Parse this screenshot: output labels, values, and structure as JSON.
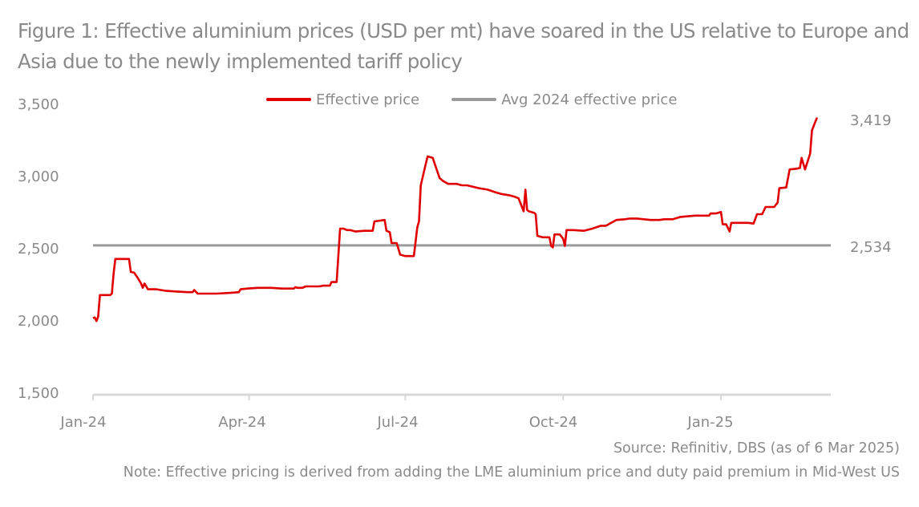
{
  "chart_data": {
    "type": "line",
    "title": "Figure 1:  Effective aluminium prices (USD per mt) have soared in the US relative to Europe and Asia due to the newly implemented tariff policy",
    "xlabel": "",
    "ylabel": "",
    "ylim": [
      1500,
      3500
    ],
    "yticks": [
      "3,500",
      "3,000",
      "2,500",
      "2,000",
      "1,500"
    ],
    "ytick_values": [
      3500,
      3000,
      2500,
      2000,
      1500
    ],
    "xticks": [
      "Jan-24",
      "Apr-24",
      "Jul-24",
      "Oct-24",
      "Jan-25"
    ],
    "xtick_days": [
      0,
      91,
      182,
      274,
      366
    ],
    "x_range_days": [
      0,
      430
    ],
    "x_unit": "days since 1 Jan 2024",
    "grid": false,
    "legend_position": "top",
    "legend": [
      "Effective price",
      "Avg 2024 effective price"
    ],
    "series": [
      {
        "name": "Effective price",
        "color": "#e00000",
        "points": [
          [
            0,
            2030
          ],
          [
            1,
            2035
          ],
          [
            2,
            2010
          ],
          [
            3,
            2040
          ],
          [
            4,
            2190
          ],
          [
            7,
            2190
          ],
          [
            10,
            2190
          ],
          [
            11,
            2200
          ],
          [
            12,
            2340
          ],
          [
            13,
            2440
          ],
          [
            16,
            2440
          ],
          [
            21,
            2440
          ],
          [
            22,
            2350
          ],
          [
            24,
            2345
          ],
          [
            26,
            2310
          ],
          [
            28,
            2270
          ],
          [
            29,
            2240
          ],
          [
            30,
            2270
          ],
          [
            32,
            2230
          ],
          [
            37,
            2230
          ],
          [
            42,
            2220
          ],
          [
            48,
            2215
          ],
          [
            55,
            2210
          ],
          [
            58,
            2210
          ],
          [
            59,
            2225
          ],
          [
            61,
            2200
          ],
          [
            66,
            2200
          ],
          [
            72,
            2200
          ],
          [
            80,
            2205
          ],
          [
            85,
            2210
          ],
          [
            86,
            2230
          ],
          [
            90,
            2235
          ],
          [
            96,
            2240
          ],
          [
            104,
            2240
          ],
          [
            110,
            2235
          ],
          [
            117,
            2235
          ],
          [
            118,
            2245
          ],
          [
            119,
            2240
          ],
          [
            122,
            2240
          ],
          [
            124,
            2250
          ],
          [
            132,
            2250
          ],
          [
            134,
            2255
          ],
          [
            138,
            2255
          ],
          [
            139,
            2280
          ],
          [
            142,
            2280
          ],
          [
            144,
            2650
          ],
          [
            146,
            2650
          ],
          [
            148,
            2640
          ],
          [
            150,
            2640
          ],
          [
            153,
            2630
          ],
          [
            158,
            2635
          ],
          [
            163,
            2635
          ],
          [
            164,
            2700
          ],
          [
            170,
            2710
          ],
          [
            171,
            2635
          ],
          [
            173,
            2625
          ],
          [
            174,
            2550
          ],
          [
            177,
            2550
          ],
          [
            179,
            2470
          ],
          [
            182,
            2460
          ],
          [
            187,
            2460
          ],
          [
            189,
            2660
          ],
          [
            190,
            2700
          ],
          [
            191,
            2950
          ],
          [
            193,
            3050
          ],
          [
            195,
            3150
          ],
          [
            198,
            3140
          ],
          [
            200,
            3070
          ],
          [
            202,
            3000
          ],
          [
            204,
            2980
          ],
          [
            207,
            2960
          ],
          [
            212,
            2960
          ],
          [
            215,
            2950
          ],
          [
            218,
            2950
          ],
          [
            225,
            2930
          ],
          [
            230,
            2920
          ],
          [
            235,
            2900
          ],
          [
            238,
            2890
          ],
          [
            243,
            2880
          ],
          [
            246,
            2870
          ],
          [
            248,
            2860
          ],
          [
            250,
            2800
          ],
          [
            251,
            2770
          ],
          [
            252,
            2920
          ],
          [
            253,
            2780
          ],
          [
            254,
            2770
          ],
          [
            257,
            2760
          ],
          [
            258,
            2750
          ],
          [
            259,
            2600
          ],
          [
            262,
            2590
          ],
          [
            266,
            2590
          ],
          [
            267,
            2530
          ],
          [
            268,
            2520
          ],
          [
            269,
            2610
          ],
          [
            272,
            2610
          ],
          [
            274,
            2580
          ],
          [
            275,
            2530
          ],
          [
            276,
            2640
          ],
          [
            280,
            2640
          ],
          [
            286,
            2635
          ],
          [
            291,
            2650
          ],
          [
            296,
            2670
          ],
          [
            299,
            2670
          ],
          [
            302,
            2690
          ],
          [
            305,
            2710
          ],
          [
            310,
            2715
          ],
          [
            313,
            2720
          ],
          [
            317,
            2720
          ],
          [
            321,
            2715
          ],
          [
            325,
            2710
          ],
          [
            330,
            2710
          ],
          [
            333,
            2715
          ],
          [
            338,
            2715
          ],
          [
            342,
            2730
          ],
          [
            346,
            2735
          ],
          [
            351,
            2740
          ],
          [
            355,
            2740
          ],
          [
            359,
            2740
          ],
          [
            360,
            2755
          ],
          [
            363,
            2755
          ],
          [
            366,
            2765
          ],
          [
            367,
            2680
          ],
          [
            369,
            2680
          ],
          [
            371,
            2630
          ],
          [
            372,
            2690
          ],
          [
            377,
            2690
          ],
          [
            382,
            2690
          ],
          [
            385,
            2685
          ],
          [
            387,
            2750
          ],
          [
            390,
            2750
          ],
          [
            392,
            2800
          ],
          [
            397,
            2800
          ],
          [
            399,
            2830
          ],
          [
            400,
            2930
          ],
          [
            404,
            2935
          ],
          [
            406,
            3060
          ],
          [
            410,
            3065
          ],
          [
            412,
            3070
          ],
          [
            413,
            3140
          ],
          [
            415,
            3060
          ],
          [
            418,
            3170
          ],
          [
            419,
            3330
          ],
          [
            421,
            3390
          ],
          [
            422,
            3419
          ]
        ],
        "last_value": 3419
      },
      {
        "name": "Avg 2024 effective price",
        "color": "#9a9a9a",
        "points": [
          [
            0,
            2534
          ],
          [
            430,
            2534
          ]
        ],
        "last_value": 2534
      }
    ],
    "end_labels": [
      "3,419",
      "2,534"
    ]
  },
  "source": "Source: Refinitiv, DBS (as of 6 Mar 2025)",
  "note": "Note: Effective pricing is derived from adding the LME aluminium price and duty paid premium in Mid-West US"
}
